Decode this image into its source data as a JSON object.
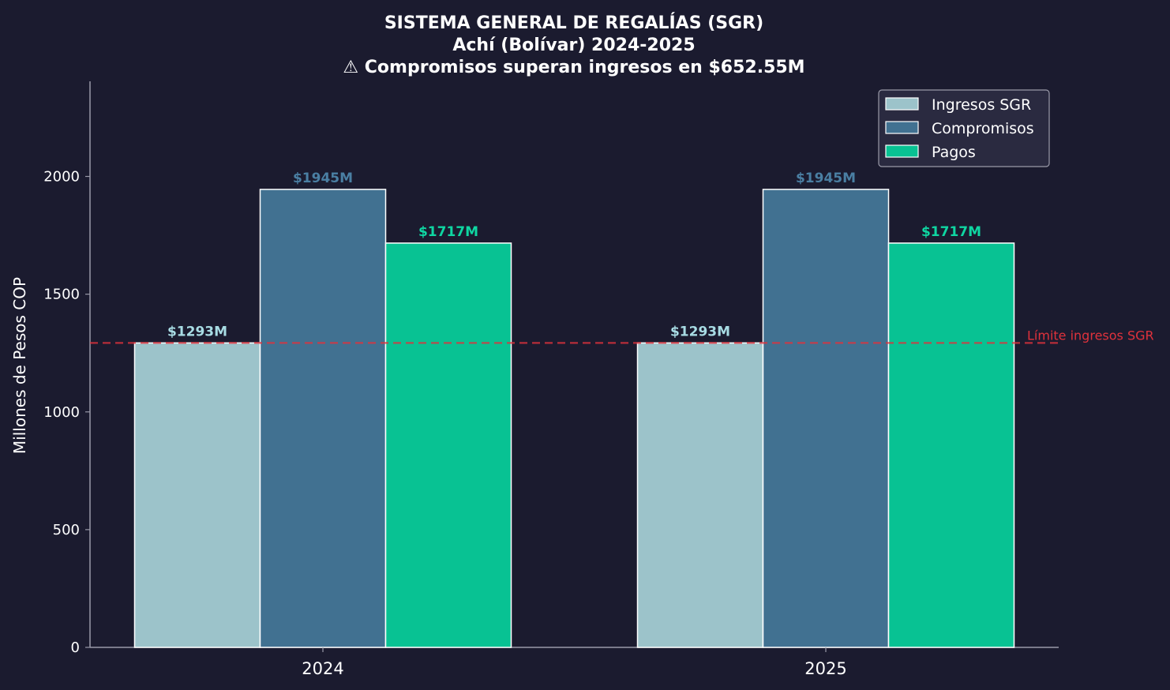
{
  "chart_data": {
    "type": "bar",
    "title_lines": [
      "SISTEMA GENERAL DE REGALÍAS (SGR)",
      "Achí (Bolívar) 2024-2025",
      "⚠ Compromisos superan ingresos en $652.55M"
    ],
    "xlabel": "",
    "ylabel": "Millones de Pesos COP",
    "categories": [
      "2024",
      "2025"
    ],
    "series": [
      {
        "name": "Ingresos SGR",
        "values": [
          1293,
          1293
        ],
        "labels": [
          "$1293M",
          "$1293M"
        ],
        "color": "#9cc3ca",
        "label_color": "#a8dce4"
      },
      {
        "name": "Compromisos",
        "values": [
          1945,
          1945
        ],
        "labels": [
          "$1945M",
          "$1945M"
        ],
        "color": "#417191",
        "label_color": "#4a7fa3"
      },
      {
        "name": "Pagos",
        "values": [
          1717,
          1717
        ],
        "labels": [
          "$1717M",
          "$1717M"
        ],
        "color": "#08c293",
        "label_color": "#0fd6a2"
      }
    ],
    "ylim": [
      0,
      2400
    ],
    "yticks": [
      "0",
      "500",
      "1000",
      "1500",
      "2000"
    ],
    "reference_line": {
      "value": 1293,
      "label": "Límite ingresos SGR",
      "color": "#e0323c",
      "style": "dashed"
    },
    "legend_position": "top-right",
    "grid": false,
    "colors": {
      "background": "#1b1b2f",
      "axis": "#9a9aa8",
      "text": "#ffffff",
      "legend_bg": "#2a2a40"
    }
  }
}
